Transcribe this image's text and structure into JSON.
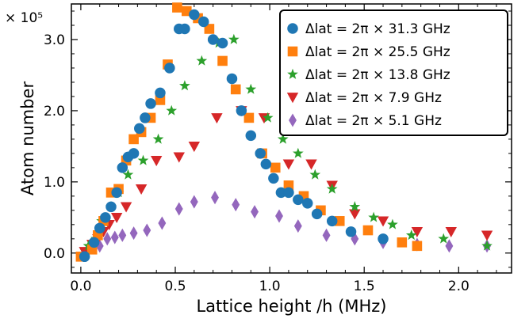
{
  "chart_data": {
    "type": "scatter",
    "xlabel": "Lattice height /h (MHz)",
    "ylabel": "Atom number",
    "y_scale_label": "× 10⁵",
    "xlim": [
      -0.05,
      2.28
    ],
    "ylim": [
      -0.28,
      3.5
    ],
    "x_ticks": [
      {
        "value": 0.0,
        "label": "0.0"
      },
      {
        "value": 0.5,
        "label": "0.5"
      },
      {
        "value": 1.0,
        "label": "1.0"
      },
      {
        "value": 1.5,
        "label": "1.5"
      },
      {
        "value": 2.0,
        "label": "2.0"
      }
    ],
    "y_ticks": [
      {
        "value": 0.0,
        "label": "0.0"
      },
      {
        "value": 1.0,
        "label": "1.0"
      },
      {
        "value": 2.0,
        "label": "2.0"
      },
      {
        "value": 3.0,
        "label": "3.0"
      }
    ],
    "grid": false,
    "legend_position": "top-right",
    "series": [
      {
        "name": "Δlat = 2π × 31.3 GHz",
        "marker": "circle",
        "color": "#1f77b4",
        "x": [
          0.02,
          0.07,
          0.1,
          0.13,
          0.16,
          0.19,
          0.22,
          0.25,
          0.28,
          0.31,
          0.34,
          0.37,
          0.42,
          0.47,
          0.52,
          0.55,
          0.6,
          0.65,
          0.7,
          0.75,
          0.8,
          0.85,
          0.9,
          0.95,
          0.98,
          1.02,
          1.06,
          1.1,
          1.15,
          1.2,
          1.25,
          1.33,
          1.43,
          1.6
        ],
        "y": [
          -0.05,
          0.15,
          0.35,
          0.5,
          0.65,
          0.85,
          1.2,
          1.35,
          1.4,
          1.75,
          1.9,
          2.1,
          2.25,
          2.6,
          3.15,
          3.15,
          3.35,
          3.25,
          3.0,
          2.95,
          2.45,
          2.0,
          1.65,
          1.4,
          1.25,
          1.05,
          0.85,
          0.85,
          0.75,
          0.7,
          0.55,
          0.45,
          0.3,
          0.2
        ]
      },
      {
        "name": "Δlat = 2π × 25.5 GHz",
        "marker": "square",
        "color": "#ff7f0e",
        "x": [
          0.0,
          0.06,
          0.09,
          0.12,
          0.16,
          0.2,
          0.24,
          0.28,
          0.32,
          0.37,
          0.42,
          0.46,
          0.51,
          0.56,
          0.62,
          0.68,
          0.75,
          0.82,
          0.89,
          0.96,
          1.03,
          1.1,
          1.18,
          1.27,
          1.37,
          1.52,
          1.7,
          1.78
        ],
        "y": [
          -0.05,
          0.05,
          0.25,
          0.45,
          0.85,
          0.9,
          1.3,
          1.6,
          1.7,
          1.9,
          2.15,
          2.65,
          3.45,
          3.4,
          3.3,
          3.15,
          2.7,
          2.3,
          1.9,
          1.4,
          1.2,
          0.95,
          0.8,
          0.6,
          0.45,
          0.32,
          0.15,
          0.1
        ]
      },
      {
        "name": "Δlat = 2π × 13.8 GHz",
        "marker": "star",
        "color": "#2ca02c",
        "x": [
          0.04,
          0.08,
          0.11,
          0.16,
          0.2,
          0.25,
          0.33,
          0.41,
          0.48,
          0.55,
          0.64,
          0.73,
          0.81,
          0.9,
          0.99,
          1.07,
          1.15,
          1.24,
          1.33,
          1.45,
          1.55,
          1.65,
          1.75,
          1.92,
          2.15
        ],
        "y": [
          0.1,
          0.2,
          0.45,
          0.65,
          0.85,
          1.1,
          1.3,
          1.6,
          2.0,
          2.35,
          2.7,
          2.95,
          3.0,
          2.3,
          1.9,
          1.6,
          1.4,
          1.1,
          0.9,
          0.65,
          0.5,
          0.4,
          0.25,
          0.2,
          0.1
        ]
      },
      {
        "name": "Δlat = 2π × 7.9 GHz",
        "marker": "triangle-down",
        "color": "#d62728",
        "x": [
          0.02,
          0.06,
          0.09,
          0.12,
          0.15,
          0.19,
          0.24,
          0.32,
          0.4,
          0.52,
          0.6,
          0.72,
          0.85,
          0.97,
          1.1,
          1.22,
          1.33,
          1.45,
          1.6,
          1.78,
          1.96,
          2.15
        ],
        "y": [
          0.02,
          0.12,
          0.2,
          0.3,
          0.4,
          0.5,
          0.65,
          0.9,
          1.3,
          1.35,
          1.5,
          1.9,
          2.0,
          1.9,
          1.25,
          1.25,
          0.95,
          0.55,
          0.45,
          0.3,
          0.3,
          0.25
        ]
      },
      {
        "name": "Δlat = 2π × 5.1 GHz",
        "marker": "diamond",
        "color": "#9467bd",
        "x": [
          0.03,
          0.07,
          0.1,
          0.14,
          0.18,
          0.22,
          0.28,
          0.35,
          0.43,
          0.52,
          0.6,
          0.71,
          0.82,
          0.92,
          1.05,
          1.15,
          1.3,
          1.45,
          1.6,
          1.78,
          1.95,
          2.15
        ],
        "y": [
          0.02,
          0.08,
          0.1,
          0.2,
          0.22,
          0.25,
          0.28,
          0.32,
          0.42,
          0.62,
          0.72,
          0.78,
          0.68,
          0.58,
          0.52,
          0.38,
          0.25,
          0.2,
          0.15,
          0.12,
          0.1,
          0.1
        ]
      }
    ]
  }
}
